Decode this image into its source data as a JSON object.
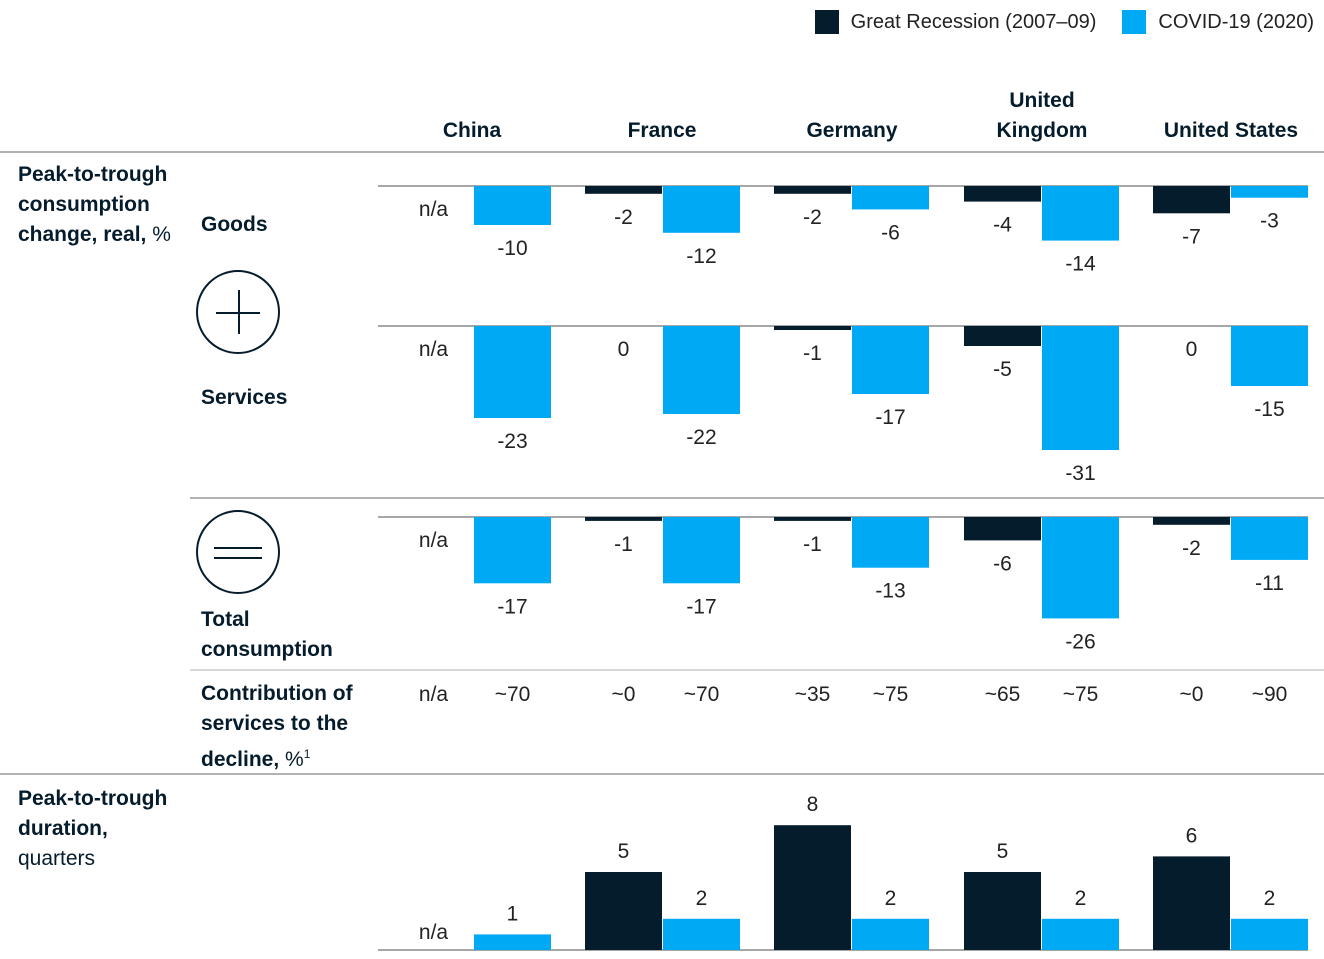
{
  "legend": {
    "recession": "Great Recession (2007–09)",
    "covid": "COVID-19 (2020)"
  },
  "colors": {
    "recession": "#051c2c",
    "covid": "#00a9f4"
  },
  "labels": {
    "section1_title": "Peak-to-trough consumption change, real,",
    "section1_unit": "%",
    "goods": "Goods",
    "services": "Services",
    "total": "Total consumption",
    "contribution": "Contribution of services to the decline,",
    "contribution_unit": "%",
    "contribution_note": "1",
    "section2_title": "Peak-to-trough duration,",
    "section2_unit": "quarters",
    "plus_icon": "plus-circle-icon",
    "equals_icon": "equals-circle-icon"
  },
  "chart_data": {
    "type": "bar",
    "countries": [
      "China",
      "France",
      "Germany",
      "United Kingdom",
      "United States"
    ],
    "series_names": [
      "Great Recession (2007–09)",
      "COVID-19 (2020)"
    ],
    "goods": {
      "recession": [
        null,
        -2,
        -2,
        -4,
        -7
      ],
      "covid": [
        -10,
        -12,
        -6,
        -14,
        -3
      ],
      "recession_labels": [
        "n/a",
        "-2",
        "-2",
        "-4",
        "-7"
      ],
      "covid_labels": [
        "-10",
        "-12",
        "-6",
        "-14",
        "-3"
      ]
    },
    "services": {
      "recession": [
        null,
        0,
        -1,
        -5,
        0
      ],
      "covid": [
        -23,
        -22,
        -17,
        -31,
        -15
      ],
      "recession_labels": [
        "n/a",
        "0",
        "-1",
        "-5",
        "0"
      ],
      "covid_labels": [
        "-23",
        "-22",
        "-17",
        "-31",
        "-15"
      ]
    },
    "total": {
      "recession": [
        null,
        -1,
        -1,
        -6,
        -2
      ],
      "covid": [
        -17,
        -17,
        -13,
        -26,
        -11
      ],
      "recession_labels": [
        "n/a",
        "-1",
        "-1",
        "-6",
        "-2"
      ],
      "covid_labels": [
        "-17",
        "-17",
        "-13",
        "-26",
        "-11"
      ]
    },
    "contribution": {
      "recession": [
        "n/a",
        "~0",
        "~35",
        "~65",
        "~0"
      ],
      "covid": [
        "~70",
        "~70",
        "~75",
        "~75",
        "~90"
      ]
    },
    "duration": {
      "recession": [
        null,
        5,
        8,
        5,
        6
      ],
      "covid": [
        1,
        2,
        2,
        2,
        2
      ],
      "recession_labels": [
        "n/a",
        "5",
        "8",
        "5",
        "6"
      ],
      "covid_labels": [
        "1",
        "2",
        "2",
        "2",
        "2"
      ]
    }
  }
}
